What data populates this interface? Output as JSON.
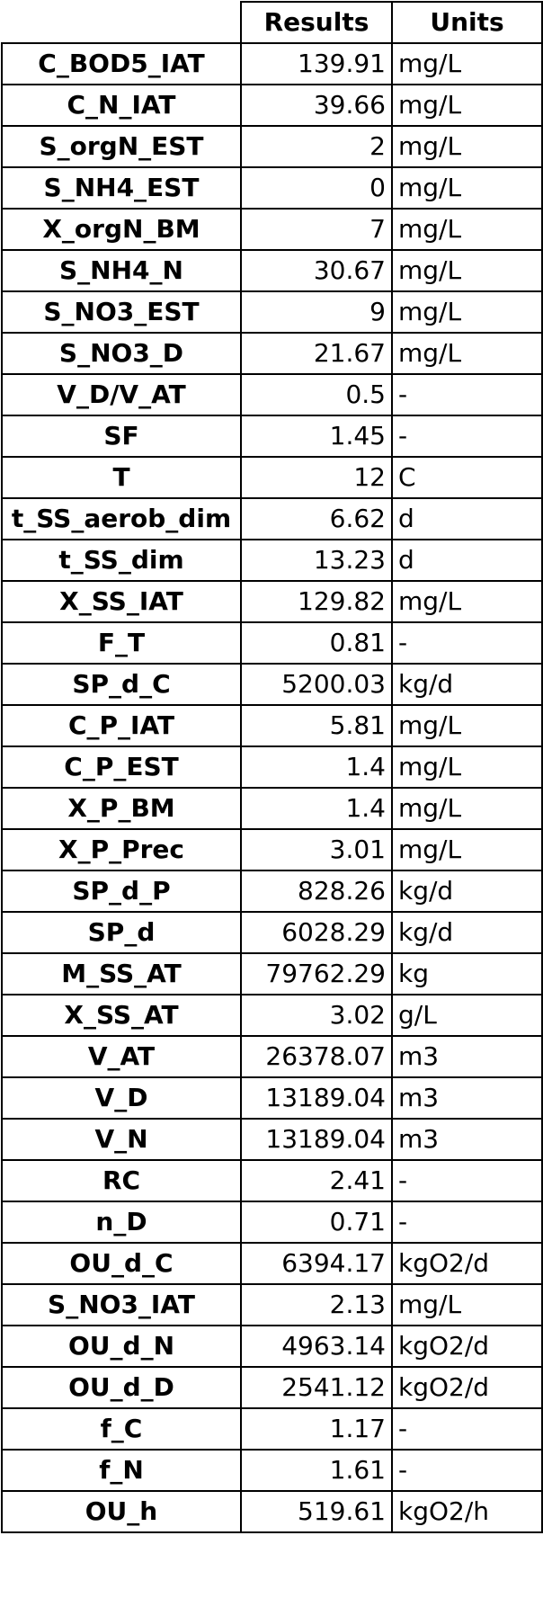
{
  "headers": {
    "results": "Results",
    "units": "Units"
  },
  "rows": [
    {
      "name": "C_BOD5_IAT",
      "value": "139.91",
      "unit": "mg/L"
    },
    {
      "name": "C_N_IAT",
      "value": "39.66",
      "unit": "mg/L"
    },
    {
      "name": "S_orgN_EST",
      "value": "2",
      "unit": "mg/L"
    },
    {
      "name": "S_NH4_EST",
      "value": "0",
      "unit": "mg/L"
    },
    {
      "name": "X_orgN_BM",
      "value": "7",
      "unit": "mg/L"
    },
    {
      "name": "S_NH4_N",
      "value": "30.67",
      "unit": "mg/L"
    },
    {
      "name": "S_NO3_EST",
      "value": "9",
      "unit": "mg/L"
    },
    {
      "name": "S_NO3_D",
      "value": "21.67",
      "unit": "mg/L"
    },
    {
      "name": "V_D/V_AT",
      "value": "0.5",
      "unit": "-"
    },
    {
      "name": "SF",
      "value": "1.45",
      "unit": "-"
    },
    {
      "name": "T",
      "value": "12",
      "unit": "C"
    },
    {
      "name": "t_SS_aerob_dim",
      "value": "6.62",
      "unit": "d"
    },
    {
      "name": "t_SS_dim",
      "value": "13.23",
      "unit": "d"
    },
    {
      "name": "X_SS_IAT",
      "value": "129.82",
      "unit": "mg/L"
    },
    {
      "name": "F_T",
      "value": "0.81",
      "unit": "-"
    },
    {
      "name": "SP_d_C",
      "value": "5200.03",
      "unit": "kg/d"
    },
    {
      "name": "C_P_IAT",
      "value": "5.81",
      "unit": "mg/L"
    },
    {
      "name": "C_P_EST",
      "value": "1.4",
      "unit": "mg/L"
    },
    {
      "name": "X_P_BM",
      "value": "1.4",
      "unit": "mg/L"
    },
    {
      "name": "X_P_Prec",
      "value": "3.01",
      "unit": "mg/L"
    },
    {
      "name": "SP_d_P",
      "value": "828.26",
      "unit": "kg/d"
    },
    {
      "name": "SP_d",
      "value": "6028.29",
      "unit": "kg/d"
    },
    {
      "name": "M_SS_AT",
      "value": "79762.29",
      "unit": "kg"
    },
    {
      "name": "X_SS_AT",
      "value": "3.02",
      "unit": "g/L"
    },
    {
      "name": "V_AT",
      "value": "26378.07",
      "unit": "m3"
    },
    {
      "name": "V_D",
      "value": "13189.04",
      "unit": "m3"
    },
    {
      "name": "V_N",
      "value": "13189.04",
      "unit": "m3"
    },
    {
      "name": "RC",
      "value": "2.41",
      "unit": "-"
    },
    {
      "name": "n_D",
      "value": "0.71",
      "unit": "-"
    },
    {
      "name": "OU_d_C",
      "value": "6394.17",
      "unit": "kgO2/d"
    },
    {
      "name": "S_NO3_IAT",
      "value": "2.13",
      "unit": "mg/L"
    },
    {
      "name": "OU_d_N",
      "value": "4963.14",
      "unit": "kgO2/d"
    },
    {
      "name": "OU_d_D",
      "value": "2541.12",
      "unit": "kgO2/d"
    },
    {
      "name": "f_C",
      "value": "1.17",
      "unit": "-"
    },
    {
      "name": "f_N",
      "value": "1.61",
      "unit": "-"
    },
    {
      "name": "OU_h",
      "value": "519.61",
      "unit": "kgO2/h"
    }
  ]
}
